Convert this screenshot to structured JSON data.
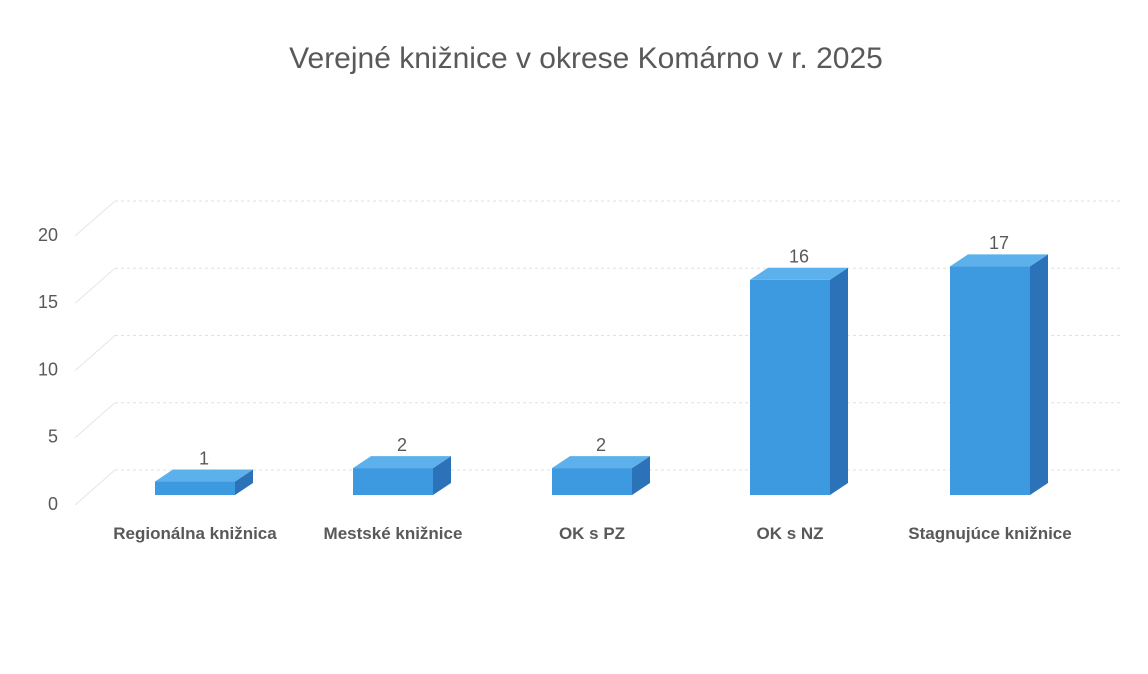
{
  "chart_data": {
    "type": "bar3d",
    "title": "Verejné knižnice v okrese Komárno v r. 2025",
    "categories": [
      "Regionálna knižnica",
      "Mestské knižnice",
      "OK s PZ",
      "OK s NZ",
      "Stagnujúce knižnice"
    ],
    "values": [
      1,
      2,
      2,
      16,
      17
    ],
    "color": "#3d9ae0",
    "ylim": [
      0,
      20
    ],
    "yticks": [
      0,
      5,
      10,
      15,
      20
    ],
    "grid": true
  }
}
